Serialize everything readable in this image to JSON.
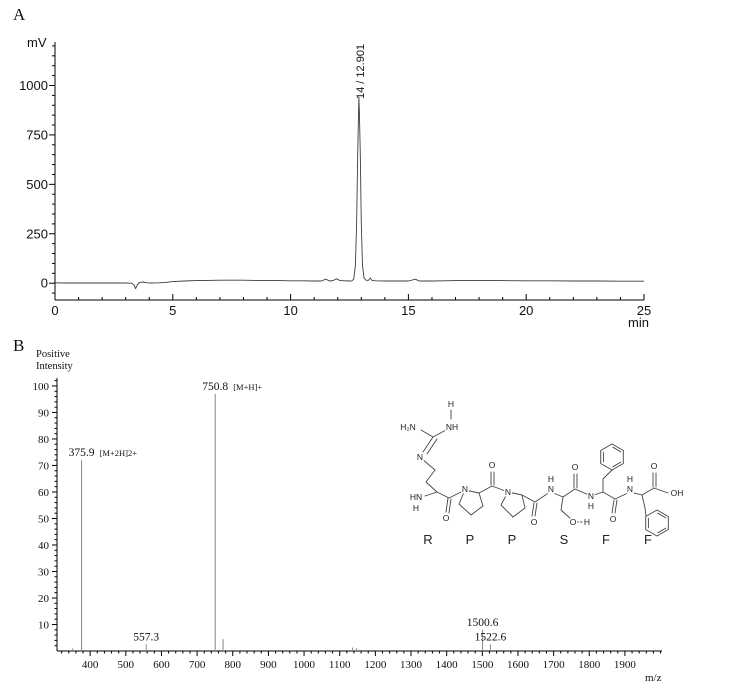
{
  "panel_a": {
    "label": "A",
    "y_unit": "mV",
    "x_unit": "min",
    "peak_annotation": "14 / 12.901"
  },
  "panel_b": {
    "label": "B",
    "y_label_line1": "Positive",
    "y_label_line2": "Intensity",
    "x_label": "m/z"
  },
  "structure": {
    "residues": [
      "R",
      "P",
      "P",
      "S",
      "F",
      "F"
    ],
    "atoms": [
      "H",
      "H₂N",
      "NH",
      "N",
      "HN",
      "H",
      "O",
      "N",
      "O",
      "N",
      "O",
      "H",
      "N",
      "O",
      "O",
      "H",
      "N",
      "H",
      "O",
      "H",
      "N",
      "O",
      "OH"
    ]
  },
  "colors": {
    "axis": "#000000",
    "trace": "#3c3c3c",
    "ms_peak": "#8f8f8f",
    "text": "#111111",
    "background": "#ffffff"
  },
  "chart_data": [
    {
      "id": "hplc-chromatogram",
      "type": "line",
      "title": "A",
      "xlabel": "min",
      "ylabel": "mV",
      "xlim": [
        0,
        25
      ],
      "ylim": [
        -85,
        1220
      ],
      "xticks": [
        0,
        5,
        10,
        15,
        20,
        25
      ],
      "yticks": [
        0,
        250,
        500,
        750,
        1000
      ],
      "x_minor_step": 1,
      "y_minor_step": 50,
      "grid": false,
      "peak": {
        "number": 14,
        "retention_time_min": 12.901,
        "apex_mV": 940,
        "annotation": "14 / 12.901"
      },
      "trace": [
        [
          0,
          2
        ],
        [
          0.5,
          1
        ],
        [
          1,
          1
        ],
        [
          1.5,
          1
        ],
        [
          2,
          1
        ],
        [
          2.5,
          1
        ],
        [
          3,
          1
        ],
        [
          3.25,
          0
        ],
        [
          3.35,
          -8
        ],
        [
          3.42,
          -28
        ],
        [
          3.5,
          -6
        ],
        [
          3.6,
          4
        ],
        [
          3.75,
          6
        ],
        [
          3.9,
          2
        ],
        [
          4.1,
          1
        ],
        [
          4.4,
          2
        ],
        [
          4.7,
          4
        ],
        [
          5,
          8
        ],
        [
          5.5,
          11
        ],
        [
          6,
          13
        ],
        [
          6.5,
          14
        ],
        [
          7,
          15
        ],
        [
          7.5,
          15
        ],
        [
          8,
          15
        ],
        [
          8.5,
          14
        ],
        [
          9,
          14
        ],
        [
          9.5,
          13
        ],
        [
          10,
          12
        ],
        [
          10.5,
          12
        ],
        [
          11,
          11
        ],
        [
          11.3,
          11
        ],
        [
          11.5,
          20
        ],
        [
          11.65,
          11
        ],
        [
          11.8,
          13
        ],
        [
          11.95,
          22
        ],
        [
          12.1,
          13
        ],
        [
          12.3,
          12
        ],
        [
          12.5,
          11
        ],
        [
          12.6,
          12
        ],
        [
          12.68,
          20
        ],
        [
          12.75,
          90
        ],
        [
          12.8,
          300
        ],
        [
          12.85,
          650
        ],
        [
          12.88,
          860
        ],
        [
          12.901,
          940
        ],
        [
          12.92,
          860
        ],
        [
          12.96,
          650
        ],
        [
          13.0,
          300
        ],
        [
          13.05,
          90
        ],
        [
          13.12,
          25
        ],
        [
          13.2,
          15
        ],
        [
          13.3,
          14
        ],
        [
          13.38,
          26
        ],
        [
          13.45,
          14
        ],
        [
          13.6,
          12
        ],
        [
          14,
          11
        ],
        [
          14.5,
          11
        ],
        [
          15,
          11
        ],
        [
          15.3,
          20
        ],
        [
          15.45,
          11
        ],
        [
          16,
          11
        ],
        [
          16.5,
          12
        ],
        [
          17,
          13
        ],
        [
          17.5,
          13
        ],
        [
          18,
          13
        ],
        [
          19,
          13
        ],
        [
          20,
          12
        ],
        [
          21,
          12
        ],
        [
          22,
          11
        ],
        [
          23,
          11
        ],
        [
          24,
          10
        ],
        [
          25,
          10
        ]
      ]
    },
    {
      "id": "mass-spectrum",
      "type": "bar",
      "title": "B",
      "xlabel": "m/z",
      "ylabel": "Positive Intensity",
      "xlim": [
        307,
        2004
      ],
      "ylim": [
        0,
        103
      ],
      "xticks": [
        400,
        500,
        600,
        700,
        800,
        900,
        1000,
        1100,
        1200,
        1300,
        1400,
        1500,
        1600,
        1700,
        1800,
        1900
      ],
      "yticks": [
        10,
        20,
        30,
        40,
        50,
        60,
        70,
        80,
        90,
        100
      ],
      "x_minor_step": 20,
      "y_minor_step": 2,
      "grid": false,
      "peaks": [
        {
          "mz": 351.0,
          "intensity": 1.0
        },
        {
          "mz": 375.9,
          "intensity": 72,
          "label": "375.9",
          "annotation": "[M+2H]2+"
        },
        {
          "mz": 557.3,
          "intensity": 2.5,
          "label": "557.3"
        },
        {
          "mz": 750.8,
          "intensity": 97,
          "label": "750.8",
          "annotation": "[M+H]+"
        },
        {
          "mz": 772.8,
          "intensity": 4.5
        },
        {
          "mz": 1136.0,
          "intensity": 1.3
        },
        {
          "mz": 1147.0,
          "intensity": 1.0
        },
        {
          "mz": 1500.6,
          "intensity": 8,
          "label": "1500.6"
        },
        {
          "mz": 1522.6,
          "intensity": 2.5,
          "label": "1522.6"
        }
      ]
    }
  ]
}
